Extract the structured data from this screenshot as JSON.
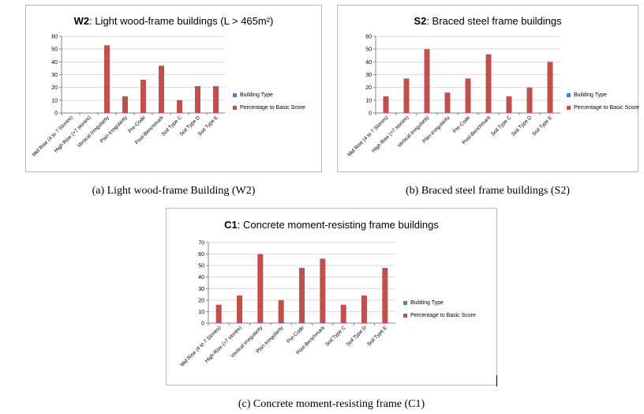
{
  "colors": {
    "building_type": "#4f81bd",
    "percentage": "#c0504d",
    "gridline": "#d9d9d9",
    "axis": "#868686"
  },
  "chart_data": [
    {
      "type": "bar",
      "title_code": "W2",
      "title_text": ": Light wood-frame buildings (L > 465m²)",
      "caption": "(a) Light wood-frame Building (W2)",
      "categories": [
        "Mid Rise (4 to 7 Stories)",
        "High Rise (>7 stories)",
        "Vertical Irregularity",
        "Plan Irregularity",
        "Pre-Code",
        "Post-Benchmark",
        "Soil Type C",
        "Soil Type D",
        "Soil Type E"
      ],
      "series": [
        {
          "name": "Building Type",
          "values": [
            0,
            0,
            0,
            0,
            0,
            0,
            0,
            0,
            0
          ]
        },
        {
          "name": "Percentage to Basic Score",
          "values": [
            0,
            0,
            53,
            13,
            26,
            37,
            10,
            21,
            21
          ]
        }
      ],
      "yticks": [
        "0",
        "10",
        "20",
        "30",
        "40",
        "50",
        "60"
      ],
      "ylim": [
        0,
        60
      ],
      "grid": true,
      "legend": "right"
    },
    {
      "type": "bar",
      "title_code": "S2",
      "title_text": ":   Braced steel frame buildings",
      "caption": "(b) Braced steel frame buildings (S2)",
      "categories": [
        "Mid Rise (4 to 7 Stories)",
        "High Rise (>7 stories)",
        "Vertical Irregularity",
        "Plan Irregularity",
        "Pre-Code",
        "Post-Benchmark",
        "Soil Type C",
        "Soil Type D",
        "Soil Type E"
      ],
      "series": [
        {
          "name": "Building Type",
          "values": [
            0,
            0,
            0,
            0,
            0,
            0,
            0,
            0,
            0
          ]
        },
        {
          "name": "Percentage to Basic Score",
          "values": [
            13,
            27,
            50,
            16,
            27,
            46,
            13,
            20,
            40
          ]
        }
      ],
      "yticks": [
        "0",
        "10",
        "20",
        "30",
        "40",
        "50",
        "60"
      ],
      "ylim": [
        0,
        60
      ],
      "grid": true,
      "legend": "right"
    },
    {
      "type": "bar",
      "title_code": "C1",
      "title_text": ":  Concrete moment-resisting frame buildings",
      "caption": "(c) Concrete moment-resisting frame (C1)",
      "categories": [
        "Mid Rise (4 to 7 Stories)",
        "High Rise (>7 stories)",
        "Vertical Irregularity",
        "Plan Irregularity",
        "Pre-Code",
        "Post-Benchmark",
        "Soil Type C",
        "Soil Type D",
        "Soil Type E"
      ],
      "series": [
        {
          "name": "Building Type",
          "values": [
            0,
            0,
            0,
            0,
            0,
            0,
            0,
            0,
            0
          ]
        },
        {
          "name": "Percentage to Basic Score",
          "values": [
            16,
            24,
            60,
            20,
            48,
            56,
            16,
            24,
            48
          ]
        }
      ],
      "yticks": [
        "0",
        "10",
        "20",
        "30",
        "40",
        "50",
        "60",
        "70"
      ],
      "ylim": [
        0,
        70
      ],
      "grid": true,
      "legend": "right"
    }
  ]
}
